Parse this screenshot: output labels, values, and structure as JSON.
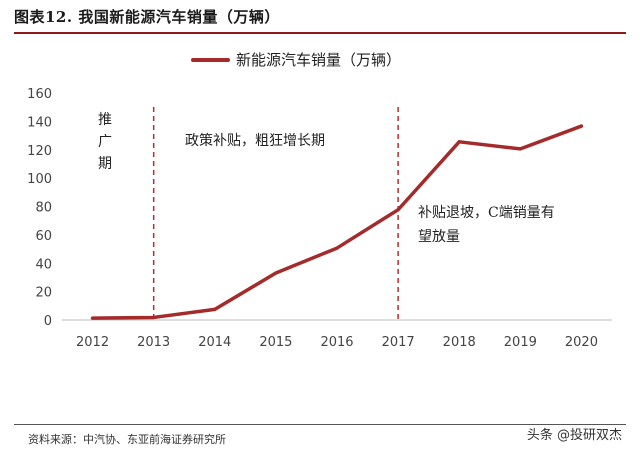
{
  "figure": {
    "title": "图表12. 我国新能源汽车销量（万辆）",
    "source": "资料来源：中汽协、东亚前海证券研究所",
    "watermark": "头条 @投研双杰"
  },
  "chart_data": {
    "type": "line",
    "title": "",
    "xlabel": "",
    "ylabel": "",
    "categories": [
      "2012",
      "2013",
      "2014",
      "2015",
      "2016",
      "2017",
      "2018",
      "2019",
      "2020"
    ],
    "series": [
      {
        "name": "新能源汽车销量（万辆）",
        "values": [
          1.3,
          1.8,
          7.5,
          33.1,
          50.7,
          77.7,
          125.6,
          120.6,
          136.7
        ]
      }
    ],
    "ylim": [
      0,
      160
    ],
    "yticks": [
      0,
      20,
      40,
      60,
      80,
      100,
      120,
      140,
      160
    ],
    "legend": "top-center",
    "grid": false,
    "line_color": "#a52a2a",
    "divider_color": "#b03030",
    "dividers": [
      "2013",
      "2017"
    ],
    "annotations": [
      {
        "id": "promo",
        "lines": [
          "推",
          "广",
          "期"
        ]
      },
      {
        "id": "subsidy",
        "lines": [
          "政策补贴，粗狂增长期"
        ]
      },
      {
        "id": "retreat",
        "lines": [
          "补贴退坡，C端销量有",
          "望放量"
        ]
      }
    ]
  }
}
